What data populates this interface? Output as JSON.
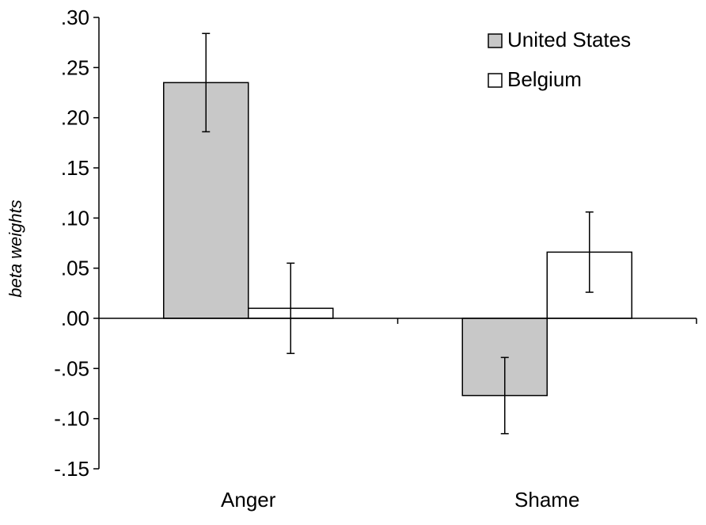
{
  "chart_data": {
    "type": "bar",
    "categories": [
      "Anger",
      "Shame"
    ],
    "series": [
      {
        "name": "United States",
        "values": [
          0.235,
          -0.077
        ],
        "error": [
          0.049,
          0.038
        ],
        "color": "#c8c8c8"
      },
      {
        "name": "Belgium",
        "values": [
          0.01,
          0.066
        ],
        "error": [
          0.045,
          0.04
        ],
        "color": "#ffffff"
      }
    ],
    "title": "",
    "xlabel": "",
    "ylabel": "beta weights",
    "ylim": [
      -0.15,
      0.3
    ],
    "yticks": [
      0.3,
      0.25,
      0.2,
      0.15,
      0.1,
      0.05,
      0.0,
      -0.05,
      -0.1,
      -0.15
    ],
    "ytick_labels": [
      ".30",
      ".25",
      ".20",
      ".15",
      ".10",
      ".05",
      ".00",
      "-.05",
      "-.10",
      "-.15"
    ],
    "legend_position": "top-right",
    "grid": false,
    "bar_edge_color": "#000000"
  }
}
